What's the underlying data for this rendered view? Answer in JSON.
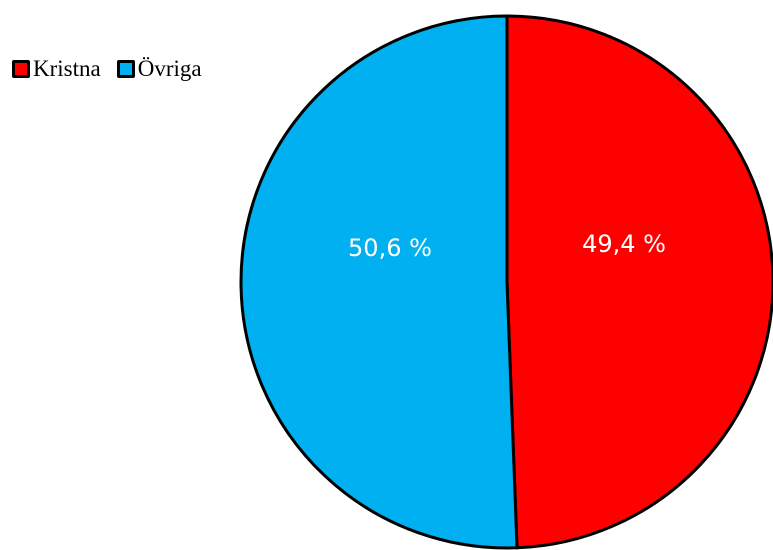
{
  "chart_data": {
    "type": "pie",
    "title": "",
    "legend_position": "top-left",
    "slices": [
      {
        "label": "Kristna",
        "value": 49.4,
        "value_label": "49,4 %",
        "color": "#ff0000"
      },
      {
        "label": "Övriga",
        "value": 50.6,
        "value_label": "50,6 %",
        "color": "#00b0f0"
      }
    ]
  }
}
